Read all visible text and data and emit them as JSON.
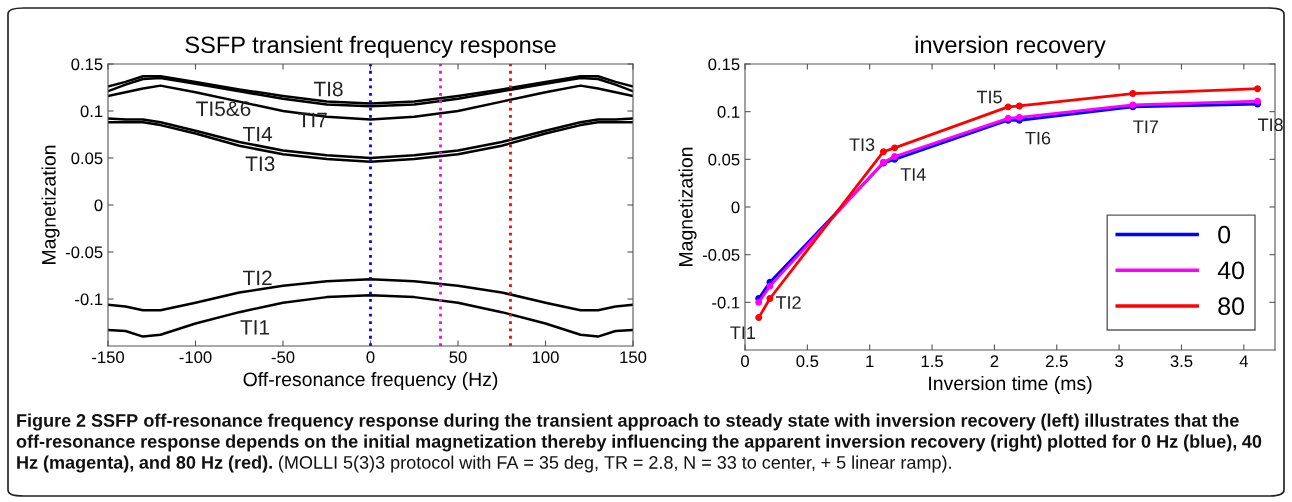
{
  "chart_data": [
    {
      "type": "line",
      "title": "SSFP transient frequency response",
      "xlabel": "Off-resonance frequency (Hz)",
      "ylabel": "Magnetization",
      "x": [
        -150,
        -140,
        -130,
        -120,
        -100,
        -75,
        -50,
        -25,
        0,
        25,
        50,
        75,
        100,
        120,
        130,
        140,
        150
      ],
      "series": [
        {
          "color": "#000000",
          "values": [
            0.126,
            0.131,
            0.137,
            0.137,
            0.131,
            0.123,
            0.116,
            0.11,
            0.108,
            0.11,
            0.116,
            0.123,
            0.131,
            0.137,
            0.137,
            0.131,
            0.126
          ]
        },
        {
          "color": "#000000",
          "values": [
            0.121,
            0.128,
            0.134,
            0.135,
            0.129,
            0.121,
            0.113,
            0.107,
            0.105,
            0.107,
            0.113,
            0.121,
            0.129,
            0.135,
            0.134,
            0.128,
            0.121
          ]
        },
        {
          "color": "#000000",
          "values": [
            0.116,
            0.12,
            0.124,
            0.127,
            0.12,
            0.11,
            0.1,
            0.094,
            0.091,
            0.094,
            0.1,
            0.11,
            0.12,
            0.127,
            0.124,
            0.12,
            0.116
          ]
        },
        {
          "color": "#000000",
          "values": [
            0.092,
            0.091,
            0.091,
            0.088,
            0.079,
            0.067,
            0.058,
            0.053,
            0.05,
            0.053,
            0.058,
            0.067,
            0.079,
            0.088,
            0.091,
            0.091,
            0.092
          ]
        },
        {
          "color": "#000000",
          "values": [
            0.088,
            0.088,
            0.088,
            0.085,
            0.076,
            0.063,
            0.054,
            0.049,
            0.046,
            0.049,
            0.054,
            0.063,
            0.076,
            0.085,
            0.088,
            0.088,
            0.088
          ]
        },
        {
          "color": "#000000",
          "values": [
            -0.106,
            -0.108,
            -0.112,
            -0.112,
            -0.104,
            -0.093,
            -0.086,
            -0.081,
            -0.079,
            -0.081,
            -0.086,
            -0.093,
            -0.104,
            -0.112,
            -0.112,
            -0.108,
            -0.106
          ]
        },
        {
          "color": "#000000",
          "values": [
            -0.133,
            -0.134,
            -0.14,
            -0.138,
            -0.126,
            -0.114,
            -0.104,
            -0.098,
            -0.096,
            -0.098,
            -0.104,
            -0.114,
            -0.126,
            -0.138,
            -0.14,
            -0.134,
            -0.133
          ]
        }
      ],
      "xlim": [
        -150,
        150
      ],
      "xticks": [
        -150,
        -100,
        -50,
        0,
        50,
        100,
        150
      ],
      "ylim": [
        -0.15,
        0.15
      ],
      "yticks": [
        -0.1,
        -0.05,
        0,
        0.05,
        0.1,
        0.15
      ],
      "ref_lines": [
        {
          "axis": "x",
          "value": 0,
          "color": "#0000ff",
          "line_style": "dotted"
        },
        {
          "axis": "x",
          "value": 40,
          "color": "#ff00ff",
          "line_style": "dotted"
        },
        {
          "axis": "x",
          "value": 80,
          "color": "#ff0000",
          "line_style": "dotted"
        }
      ],
      "annotations": [
        "TI8",
        "TI7",
        "TI5&6",
        "TI4",
        "TI3",
        "TI2",
        "TI1",
        "Figure 2 SSFP off-resonance frequency response during the transient approach to steady state with inversion recovery (left) illustrates that the off-resonance response depends on the initial magnetization thereby influencing the apparent inversion recovery (right) plotted for 0 Hz (blue), 40 Hz (magenta), and 80 Hz (red).",
        "(MOLLI 5(3)3 protocol with FA = 35 deg, TR = 2.8, N = 33 to center, + 5 linear ramp)."
      ],
      "grid": false,
      "legend": false
    },
    {
      "type": "line",
      "title": "inversion recovery",
      "xlabel": "Inversion time (ms)",
      "ylabel": "Magnetization",
      "x": [
        0.11,
        0.2,
        1.11,
        1.2,
        2.11,
        2.2,
        3.11,
        4.11
      ],
      "series": [
        {
          "name": "0",
          "color": "#0000ff",
          "values": [
            -0.096,
            -0.079,
            0.046,
            0.05,
            0.091,
            0.091,
            0.105,
            0.108
          ]
        },
        {
          "name": "40",
          "color": "#ff00ff",
          "values": [
            -0.1,
            -0.083,
            0.047,
            0.053,
            0.093,
            0.094,
            0.107,
            0.111
          ]
        },
        {
          "name": "80",
          "color": "#ff0000",
          "values": [
            -0.116,
            -0.096,
            0.058,
            0.062,
            0.105,
            0.106,
            0.119,
            0.124
          ]
        }
      ],
      "xlim": [
        0,
        4.25
      ],
      "xticks": [
        0,
        0.5,
        1,
        1.5,
        2,
        2.5,
        3,
        3.5,
        4
      ],
      "ylim": [
        -0.15,
        0.15
      ],
      "yticks": [
        -0.1,
        -0.05,
        0,
        0.05,
        0.1,
        0.15
      ],
      "marker": "circle",
      "line_style": "solid",
      "grid": false,
      "legend": "bottom right",
      "annotations": [
        {
          "text": "TI1",
          "x": 0.11,
          "y": -0.116
        },
        {
          "text": "TI2",
          "x": 0.2,
          "y": -0.096
        },
        {
          "text": "TI3",
          "x": 1.11,
          "y": 0.058
        },
        {
          "text": "TI4",
          "x": 1.2,
          "y": 0.05
        },
        {
          "text": "TI5",
          "x": 2.11,
          "y": 0.105
        },
        {
          "text": "TI6",
          "x": 2.2,
          "y": 0.091
        },
        {
          "text": "TI7",
          "x": 3.11,
          "y": 0.103
        },
        {
          "text": "TI8",
          "x": 4.11,
          "y": 0.108
        }
      ]
    }
  ]
}
